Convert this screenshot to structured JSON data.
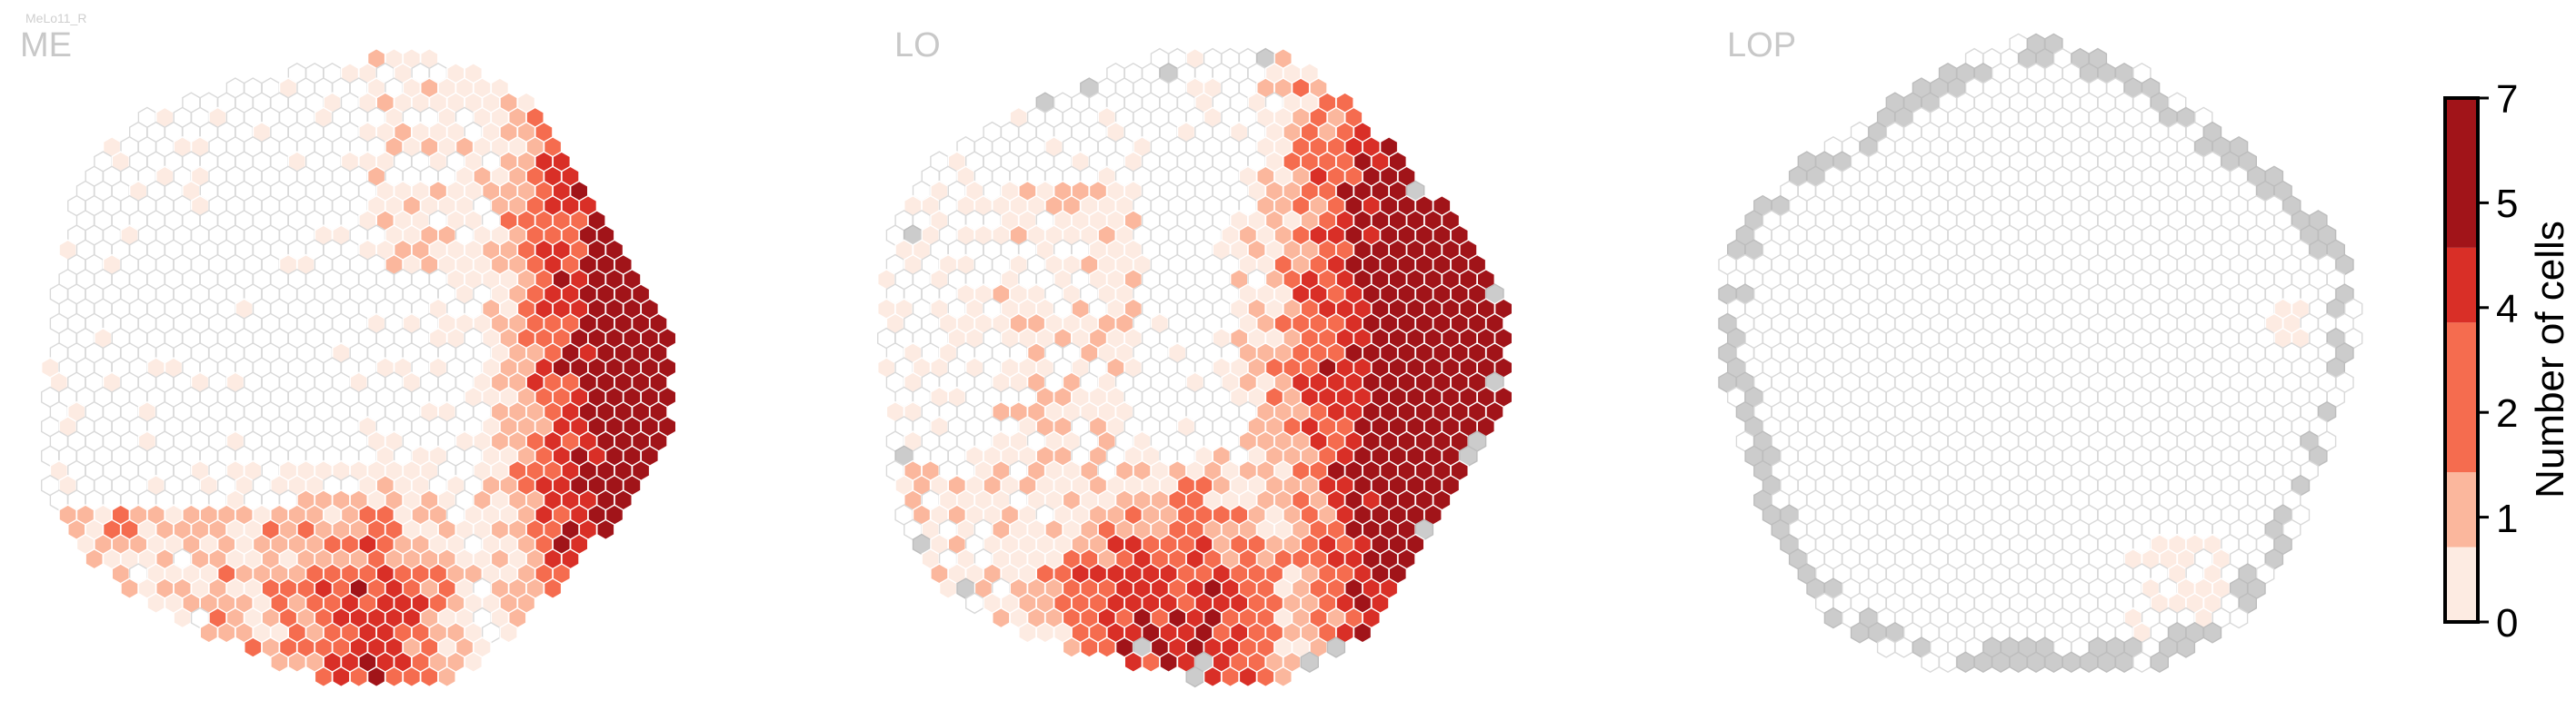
{
  "figure": {
    "corner_label": "MeLo11_R"
  },
  "chart_data": {
    "type": "heatmap",
    "panels": [
      {
        "id": "me",
        "title": "ME"
      },
      {
        "id": "lo",
        "title": "LO"
      },
      {
        "id": "lop",
        "title": "LOP"
      }
    ],
    "colorbar": {
      "label": "Number of cells",
      "ticks": [
        "0",
        "1",
        "2",
        "4",
        "5",
        "7"
      ],
      "tick_values": [
        0,
        1,
        2,
        4,
        5,
        7
      ],
      "range": [
        0,
        7
      ],
      "colors": [
        "#fdebe2",
        "#fbb79d",
        "#f56c4f",
        "#d92f27",
        "#a11419"
      ]
    },
    "colors": {
      "empty_fill": "#ffffff",
      "empty_stroke": "#d9d9d9",
      "missing_fill": "#cccccc",
      "title_color": "#c8c8c8"
    }
  }
}
